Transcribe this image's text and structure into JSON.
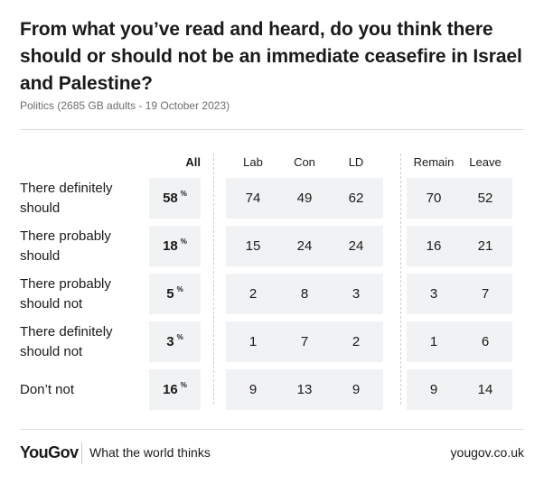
{
  "title": "From what you’ve read and heard, do you think there should or should not be an immediate ceasefire in Israel and Palestine?",
  "subtitle": "Politics (2685 GB adults - 19 October 2023)",
  "columns": [
    "All",
    "Lab",
    "Con",
    "LD",
    "Remain",
    "Leave"
  ],
  "rows": [
    {
      "label": "There definitely should",
      "all": "58",
      "values": [
        "74",
        "49",
        "62",
        "70",
        "52"
      ]
    },
    {
      "label": "There probably should",
      "all": "18",
      "values": [
        "15",
        "24",
        "24",
        "16",
        "21"
      ]
    },
    {
      "label": "There probably should not",
      "all": "5",
      "values": [
        "2",
        "8",
        "3",
        "3",
        "7"
      ]
    },
    {
      "label": "There definitely should not",
      "all": "3",
      "values": [
        "1",
        "7",
        "2",
        "1",
        "6"
      ]
    },
    {
      "label": "Don’t not",
      "all": "16",
      "values": [
        "9",
        "13",
        "9",
        "9",
        "14"
      ]
    }
  ],
  "pct_symbol": "%",
  "footer": {
    "logo": "YouGov",
    "tagline": "What the world thinks",
    "site": "yougov.co.uk"
  },
  "chart_data": {
    "type": "table",
    "title": "From what you’ve read and heard, do you think there should or should not be an immediate ceasefire in Israel and Palestine?",
    "subtitle": "Politics (2685 GB adults - 19 October 2023)",
    "categories": [
      "There definitely should",
      "There probably should",
      "There probably should not",
      "There definitely should not",
      "Don’t not"
    ],
    "series": [
      {
        "name": "All",
        "values": [
          58,
          18,
          5,
          3,
          16
        ]
      },
      {
        "name": "Lab",
        "values": [
          74,
          15,
          2,
          1,
          9
        ]
      },
      {
        "name": "Con",
        "values": [
          49,
          24,
          8,
          7,
          13
        ]
      },
      {
        "name": "LD",
        "values": [
          62,
          24,
          3,
          2,
          9
        ]
      },
      {
        "name": "Remain",
        "values": [
          70,
          16,
          3,
          1,
          9
        ]
      },
      {
        "name": "Leave",
        "values": [
          52,
          21,
          7,
          6,
          14
        ]
      }
    ]
  }
}
